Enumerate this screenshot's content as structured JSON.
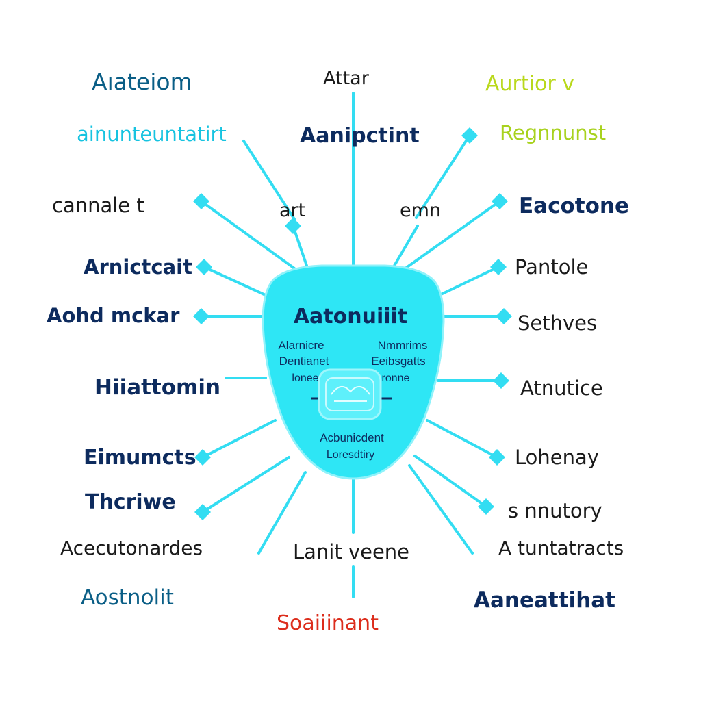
{
  "colors": {
    "connector": "#33ddf2",
    "hub_fill": "#2ee6f5",
    "hub_stroke": "#8ff2fa",
    "navy": "#0d2b5e",
    "teal": "#0a5e86",
    "cyan_text": "#16c3e0",
    "lime": "#b9d81a",
    "lime_dark": "#a8d21e",
    "red": "#dc2d1c",
    "dark_text": "#1a1a1a"
  },
  "hub": {
    "title": "Aatonuiiit",
    "left_lines": [
      "Alarnicre",
      "Dentianet",
      "lonee"
    ],
    "right_lines": [
      "Nmmrims",
      "Eeibsgatts",
      "ronne"
    ],
    "bottom_lines": [
      "Acbunicdent",
      "Loresdtiry"
    ],
    "icon": "brain-chip-icon"
  },
  "labels": [
    {
      "id": "lbl-01",
      "text": "Aıateiom",
      "color": "teal",
      "weight": "normal"
    },
    {
      "id": "lbl-02",
      "text": "Attar",
      "color": "dark_text",
      "weight": "normal"
    },
    {
      "id": "lbl-03",
      "text": "Aurtior v",
      "color": "lime",
      "weight": "normal"
    },
    {
      "id": "lbl-04",
      "text": "ainunteuntatirt",
      "color": "cyan_text",
      "weight": "normal"
    },
    {
      "id": "lbl-05",
      "text": "Aanipctint",
      "color": "navy",
      "weight": "bold"
    },
    {
      "id": "lbl-06",
      "text": "Regnnunst",
      "color": "lime_dark",
      "weight": "normal"
    },
    {
      "id": "lbl-07",
      "text": "cannale t",
      "color": "dark_text",
      "weight": "normal"
    },
    {
      "id": "lbl-08",
      "text": "art",
      "color": "dark_text",
      "weight": "normal"
    },
    {
      "id": "lbl-09",
      "text": "emn",
      "color": "dark_text",
      "weight": "normal"
    },
    {
      "id": "lbl-10",
      "text": "Eacotone",
      "color": "navy",
      "weight": "bold"
    },
    {
      "id": "lbl-11",
      "text": "Arnictcait",
      "color": "navy",
      "weight": "bold"
    },
    {
      "id": "lbl-12",
      "text": "Pantole",
      "color": "dark_text",
      "weight": "normal"
    },
    {
      "id": "lbl-13",
      "text": "Aohd mckar",
      "color": "navy",
      "weight": "bold"
    },
    {
      "id": "lbl-14",
      "text": "Sethves",
      "color": "dark_text",
      "weight": "normal"
    },
    {
      "id": "lbl-15",
      "text": "Hiiattomin",
      "color": "navy",
      "weight": "bold"
    },
    {
      "id": "lbl-16",
      "text": "Atnutice",
      "color": "dark_text",
      "weight": "normal"
    },
    {
      "id": "lbl-17",
      "text": "Eimumcts",
      "color": "navy",
      "weight": "bold"
    },
    {
      "id": "lbl-18",
      "text": "Lohenay",
      "color": "dark_text",
      "weight": "normal"
    },
    {
      "id": "lbl-19",
      "text": "Thcriwe",
      "color": "navy",
      "weight": "bold"
    },
    {
      "id": "lbl-20",
      "text": "s nnutory",
      "color": "dark_text",
      "weight": "normal"
    },
    {
      "id": "lbl-21",
      "text": "Acecutonardes",
      "color": "dark_text",
      "weight": "normal"
    },
    {
      "id": "lbl-22",
      "text": "Lanit veene",
      "color": "dark_text",
      "weight": "normal"
    },
    {
      "id": "lbl-23",
      "text": "A tuntatracts",
      "color": "dark_text",
      "weight": "normal"
    },
    {
      "id": "lbl-24",
      "text": "Aostnolit",
      "color": "teal",
      "weight": "normal"
    },
    {
      "id": "lbl-25",
      "text": "Aaneattihat",
      "color": "navy",
      "weight": "bold"
    },
    {
      "id": "lbl-26",
      "text": "Soaiiinant",
      "color": "red",
      "weight": "normal"
    }
  ]
}
